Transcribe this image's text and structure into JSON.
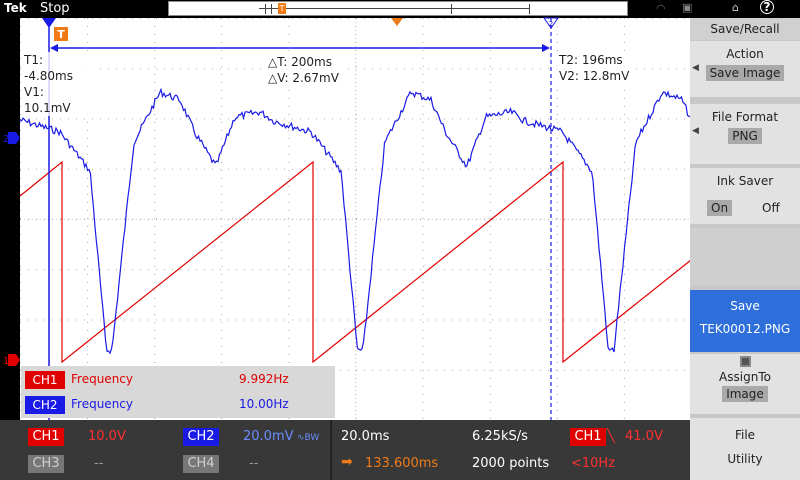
{
  "header": {
    "brand": "Tek",
    "run_state": "Stop",
    "icons": [
      "wifi-icon",
      "lock-icon",
      "usb-icon",
      "help-icon"
    ],
    "help_label": "?"
  },
  "cursors": {
    "c1": {
      "time": "T1: -4.80ms",
      "volt": "V1: 10.1mV"
    },
    "delta": {
      "time": "△T: 200ms",
      "volt": "△V: 2.67mV"
    },
    "c2": {
      "time": "T2: 196ms",
      "volt": "V2: 12.8mV"
    }
  },
  "markers": {
    "trigger_label": "T",
    "ch2_marker": "2",
    "ch1_marker": "1",
    "cursor2_tag": "2"
  },
  "measurements": [
    {
      "channel": "CH1",
      "name": "Frequency",
      "value": "9.992Hz",
      "color": "#e00000"
    },
    {
      "channel": "CH2",
      "name": "Frequency",
      "value": "10.00Hz",
      "color": "#1a1ae6"
    }
  ],
  "status": {
    "ch1_label": "CH1",
    "ch1_scale": "10.0V",
    "ch2_label": "CH2",
    "ch2_scale": "20.0mV",
    "ch2_bw_symbol": "∿BW",
    "ch3_label": "CH3",
    "ch3_scale": "--",
    "ch4_label": "CH4",
    "ch4_scale": "--",
    "timebase": "20.0ms",
    "sample_rate": "6.25kS/s",
    "trigger_source": "CH1",
    "trigger_slope": "╲",
    "trigger_level": "41.0V",
    "trigger_offset": "133.600ms",
    "record_length": "2000 points",
    "trigger_freq": "<10Hz"
  },
  "menu": {
    "title": "Save/Recall",
    "action_label": "Action",
    "action_value": "Save Image",
    "format_label": "File Format",
    "format_value": "PNG",
    "ink_label": "Ink Saver",
    "ink_on": "On",
    "ink_off": "Off",
    "save_label": "Save",
    "save_filename": "TEK00012.PNG",
    "assign_label": "AssignTo",
    "assign_value": "Image",
    "file_utility_line1": "File",
    "file_utility_line2": "Utility"
  },
  "colors": {
    "ch1": "#e00000",
    "ch2": "#1a1ae6",
    "trigger": "#f07b16",
    "selected_menu": "#2f6fdc"
  }
}
